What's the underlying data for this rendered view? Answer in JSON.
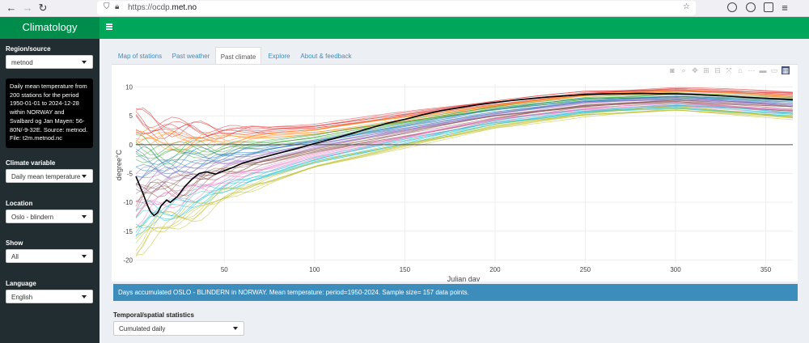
{
  "browser": {
    "url_prefix": "https://ocdp.",
    "url_host": "met.no"
  },
  "app": {
    "title": "Climatology"
  },
  "sidebar": {
    "region_label": "Region/source",
    "region_value": "metnod",
    "info_text": "Daily mean temperature from 200 stations for the period 1950-01-01 to 2024-12-28 within NORWAY and Svalbard og Jan Mayen: 56-80N/-9-32E. Source: metnod. File: t2m.metnod.nc",
    "climate_var_label": "Climate variable",
    "climate_var_value": "Daily mean temperature",
    "location_label": "Location",
    "location_value": "Oslo - blindern",
    "show_label": "Show",
    "show_value": "All",
    "language_label": "Language",
    "language_value": "English"
  },
  "tabs": [
    {
      "label": "Map of stations"
    },
    {
      "label": "Past weather"
    },
    {
      "label": "Past climate"
    },
    {
      "label": "Explore"
    },
    {
      "label": "About & feedback"
    }
  ],
  "banner": "Days accumulated OSLO - BLINDERN in NORWAY. Mean temperature: period=1950-2024. Sample size= 157 data points.",
  "stats": {
    "label": "Temporal/spatial statistics",
    "value": "Cumulated daily"
  },
  "icons": [
    "camera-icon",
    "zoom-icon",
    "pan-icon",
    "zoom-in-icon",
    "zoom-out-icon",
    "autoscale-icon",
    "reset-axes-icon",
    "spike-lines-icon",
    "hover-closest-icon",
    "hover-compare-icon",
    "plotly-logo-icon"
  ],
  "colors": {
    "header": "#00a65a",
    "brand": "#008d4c",
    "sidebar": "#222d32",
    "banner": "#3c8dbc"
  },
  "chart_data": {
    "type": "line",
    "xlabel": "Julian day",
    "ylabel": "degree°C",
    "xlim": [
      1,
      365
    ],
    "ylim": [
      -20.5,
      10.5
    ],
    "x_ticks": [
      50,
      100,
      150,
      200,
      250,
      300,
      350
    ],
    "y_ticks": [
      -20,
      -15,
      -10,
      -5,
      0,
      5,
      10
    ],
    "grid": true,
    "zero_line": 0,
    "highlight_series": {
      "color": "#000000",
      "x": [
        1,
        3,
        5,
        7,
        9,
        11,
        13,
        15,
        18,
        20,
        24,
        28,
        32,
        36,
        40,
        45,
        50,
        55,
        60,
        70,
        80,
        90,
        100,
        110,
        120,
        130,
        140,
        150,
        160,
        170,
        180,
        190,
        200,
        210,
        220,
        230,
        240,
        250,
        260,
        270,
        280,
        290,
        300,
        310,
        320,
        330,
        340,
        350,
        360,
        365
      ],
      "y": [
        -5.5,
        -7.0,
        -8.5,
        -10.2,
        -11.6,
        -12.3,
        -11.8,
        -10.6,
        -9.6,
        -10.0,
        -9.0,
        -7.3,
        -6.0,
        -5.0,
        -4.7,
        -5.1,
        -4.5,
        -3.9,
        -3.2,
        -2.3,
        -1.5,
        -0.7,
        0.2,
        1.0,
        1.9,
        2.8,
        3.7,
        4.4,
        5.2,
        5.9,
        6.4,
        6.9,
        7.3,
        7.7,
        8.0,
        8.3,
        8.5,
        8.7,
        8.8,
        8.85,
        8.9,
        8.85,
        8.8,
        8.7,
        8.55,
        8.4,
        8.2,
        8.05,
        7.9,
        7.8
      ]
    },
    "background_series_count": 157,
    "background_envelope": {
      "note_colors": [
        "#d62728",
        "#ff7f0e",
        "#2ca02c",
        "#1f77b4",
        "#9467bd",
        "#8c564b",
        "#e377c2",
        "#17becf",
        "#bcbd22"
      ],
      "x": [
        1,
        10,
        25,
        50,
        100,
        150,
        200,
        250,
        300,
        365
      ],
      "low": [
        -18.5,
        -15.5,
        -14.0,
        -9.5,
        -4.0,
        -0.5,
        3.0,
        5.0,
        6.0,
        4.5
      ],
      "high": [
        5.5,
        4.5,
        3.5,
        3.0,
        3.5,
        5.5,
        7.5,
        9.3,
        9.8,
        9.0
      ]
    }
  }
}
